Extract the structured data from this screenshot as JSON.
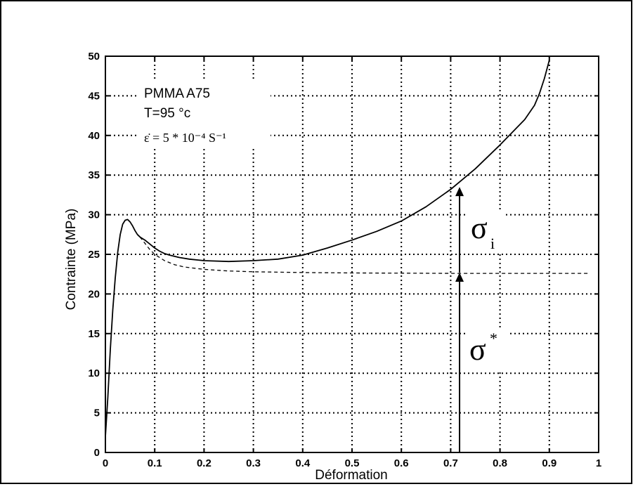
{
  "chart_data": {
    "type": "line",
    "xlabel": "Déformation",
    "ylabel": "Contrainte (MPa)",
    "xlim": [
      0,
      1
    ],
    "ylim": [
      0,
      50
    ],
    "xticks": [
      0,
      0.1,
      0.2,
      0.3,
      0.4,
      0.5,
      0.6,
      0.7,
      0.8,
      0.9,
      1
    ],
    "xtick_labels": [
      "0",
      "0.1",
      "0.2",
      "0.3",
      "0.4",
      "0.5",
      "0.6",
      "0.7",
      "0.8",
      "0.9",
      "1"
    ],
    "yticks": [
      0,
      5,
      10,
      15,
      20,
      25,
      30,
      35,
      40,
      45,
      50
    ],
    "ytick_labels": [
      "0",
      "5",
      "10",
      "15",
      "20",
      "25",
      "30",
      "35",
      "40",
      "45",
      "50"
    ],
    "grid": true,
    "annotations": {
      "material": "PMMA A75",
      "temperature": "T=95 °c",
      "strain_rate": "ε̇ = 5 * 10⁻⁴ S⁻¹",
      "sigma_i": "σ",
      "sigma_i_sub": "i",
      "sigma_star": "σ",
      "sigma_star_sup": "*"
    },
    "series": [
      {
        "style": "solid",
        "x": [
          0,
          0.005,
          0.01,
          0.015,
          0.02,
          0.025,
          0.03,
          0.035,
          0.04,
          0.045,
          0.05,
          0.055,
          0.06,
          0.065,
          0.07,
          0.08,
          0.09,
          0.1,
          0.11,
          0.12,
          0.13,
          0.15,
          0.17,
          0.2,
          0.25,
          0.3,
          0.35,
          0.4,
          0.45,
          0.5,
          0.55,
          0.6,
          0.65,
          0.7,
          0.75,
          0.8,
          0.85,
          0.87,
          0.88,
          0.89,
          0.9
        ],
        "y": [
          2,
          7,
          13,
          18,
          22,
          25.3,
          27.5,
          28.8,
          29.3,
          29.4,
          29.1,
          28.6,
          28,
          27.5,
          27.2,
          26.8,
          26.3,
          25.8,
          25.4,
          25.1,
          24.9,
          24.6,
          24.4,
          24.2,
          24.1,
          24.2,
          24.4,
          24.9,
          25.8,
          26.8,
          27.9,
          29.2,
          31,
          33.2,
          35.8,
          38.8,
          42,
          43.8,
          45.3,
          47.2,
          49.5
        ]
      },
      {
        "style": "dashed",
        "x": [
          0.07,
          0.08,
          0.09,
          0.1,
          0.12,
          0.14,
          0.16,
          0.2,
          0.25,
          0.3,
          0.4,
          0.5,
          0.6,
          0.7,
          0.8,
          0.9,
          0.98
        ],
        "y": [
          27.2,
          26.4,
          25.6,
          25,
          24.2,
          23.7,
          23.4,
          23.1,
          22.9,
          22.8,
          22.7,
          22.65,
          22.62,
          22.6,
          22.6,
          22.6,
          22.6
        ]
      }
    ],
    "arrows": [
      {
        "x": 0.718,
        "y_from": 0,
        "y_to": 22.7,
        "label": "sigma_star"
      },
      {
        "x": 0.718,
        "y_from": 22.7,
        "y_to": 33.5,
        "label": "sigma_i"
      }
    ]
  }
}
